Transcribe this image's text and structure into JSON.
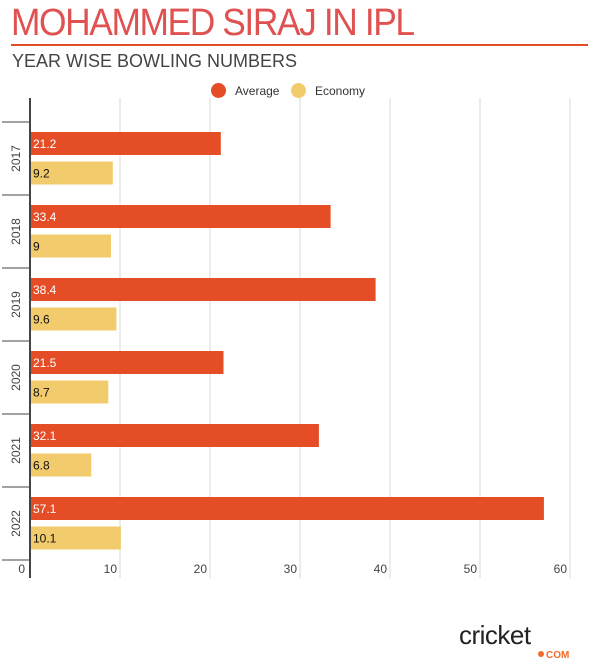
{
  "header": {
    "title": "MOHAMMED SIRAJ IN IPL",
    "subtitle": "YEAR WISE BOWLING NUMBERS"
  },
  "logo": {
    "main": "cricket",
    "suffix": "COM"
  },
  "colors": {
    "title": "#e05252",
    "average": "#e44d26",
    "economy": "#f2cb6c",
    "grid": "#d8d8d8",
    "axis": "#444444"
  },
  "chart_data": {
    "type": "bar",
    "orientation": "horizontal",
    "title": "MOHAMMED SIRAJ IN IPL",
    "subtitle": "YEAR WISE BOWLING NUMBERS",
    "categories": [
      "2017",
      "2018",
      "2019",
      "2020",
      "2021",
      "2022"
    ],
    "series": [
      {
        "name": "Average",
        "values": [
          21.2,
          33.4,
          38.4,
          21.5,
          32.1,
          57.1
        ]
      },
      {
        "name": "Economy",
        "values": [
          9.2,
          9,
          9.6,
          8.7,
          6.8,
          10.1
        ]
      }
    ],
    "value_labels": {
      "Average": [
        "21.2",
        "33.4",
        "38.4",
        "21.5",
        "32.1",
        "57.1"
      ],
      "Economy": [
        "9.2",
        "9",
        "9.6",
        "8.7",
        "6.8",
        "10.1"
      ]
    },
    "xlim": [
      0,
      60
    ],
    "xticks": [
      "0",
      "10",
      "20",
      "30",
      "40",
      "50",
      "60"
    ],
    "xlabel": "",
    "ylabel": "",
    "grid": true,
    "legend_position": "top-center"
  }
}
